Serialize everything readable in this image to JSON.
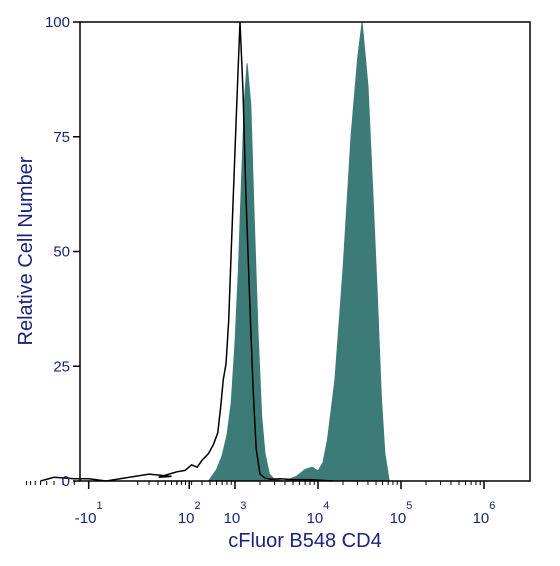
{
  "chart_data": {
    "type": "area",
    "title": "",
    "xlabel": "cFluor B548 CD4",
    "ylabel": "Relative Cell Number",
    "x_scale": "biexponential",
    "ylim": [
      0,
      100
    ],
    "y_ticks": [
      {
        "value": 0,
        "label": "0"
      },
      {
        "value": 25,
        "label": "25"
      },
      {
        "value": 50,
        "label": "50"
      },
      {
        "value": 75,
        "label": "75"
      },
      {
        "value": 100,
        "label": "100"
      }
    ],
    "x_ticks": [
      {
        "value": -10,
        "base": "-10",
        "exp": "1"
      },
      {
        "value": 100,
        "base": "10",
        "exp": "2"
      },
      {
        "value": 1000,
        "base": "10",
        "exp": "3"
      },
      {
        "value": 10000,
        "base": "10",
        "exp": "4"
      },
      {
        "value": 100000,
        "base": "10",
        "exp": "5"
      },
      {
        "value": 1000000,
        "base": "10",
        "exp": "6"
      }
    ],
    "series": [
      {
        "style": "outline",
        "color": "#000000",
        "points": [
          [
            -60,
            0
          ],
          [
            -40,
            0.8
          ],
          [
            -20,
            0.5
          ],
          [
            -10,
            0.5
          ],
          [
            0,
            0
          ],
          [
            10,
            0.6
          ],
          [
            30,
            1.5
          ],
          [
            60,
            1
          ],
          [
            120,
            0.8
          ],
          [
            160,
            1.5
          ],
          [
            200,
            2
          ],
          [
            250,
            2.3
          ],
          [
            300,
            3.5
          ],
          [
            350,
            3
          ],
          [
            400,
            4.5
          ],
          [
            480,
            6
          ],
          [
            550,
            8
          ],
          [
            620,
            10.5
          ],
          [
            680,
            17
          ],
          [
            720,
            22
          ],
          [
            780,
            25.5
          ],
          [
            840,
            35
          ],
          [
            900,
            50
          ],
          [
            1000,
            72
          ],
          [
            1080,
            88
          ],
          [
            1150,
            100
          ],
          [
            1250,
            85
          ],
          [
            1350,
            63
          ],
          [
            1500,
            40
          ],
          [
            1650,
            20
          ],
          [
            1800,
            7
          ],
          [
            2000,
            1.5
          ],
          [
            2300,
            0.6
          ],
          [
            2700,
            0.4
          ],
          [
            3500,
            0.5
          ],
          [
            5000,
            0.3
          ],
          [
            8000,
            0.3
          ],
          [
            15000,
            0
          ]
        ]
      },
      {
        "style": "filled",
        "color": "#3d7b78",
        "points": [
          [
            480,
            0
          ],
          [
            600,
            2.5
          ],
          [
            700,
            5.5
          ],
          [
            800,
            10
          ],
          [
            900,
            17
          ],
          [
            1000,
            30
          ],
          [
            1100,
            46
          ],
          [
            1200,
            66
          ],
          [
            1300,
            83
          ],
          [
            1400,
            91
          ],
          [
            1550,
            82
          ],
          [
            1700,
            58
          ],
          [
            1900,
            32
          ],
          [
            2100,
            14
          ],
          [
            2300,
            6
          ],
          [
            2600,
            1.5
          ],
          [
            3000,
            0.3
          ],
          [
            4000,
            0
          ],
          [
            5500,
            1
          ],
          [
            7000,
            2.5
          ],
          [
            8500,
            3
          ],
          [
            10000,
            2.2
          ],
          [
            11500,
            4
          ],
          [
            13000,
            9
          ],
          [
            16000,
            22
          ],
          [
            20000,
            46
          ],
          [
            25000,
            75
          ],
          [
            30000,
            92
          ],
          [
            34000,
            100
          ],
          [
            40000,
            86
          ],
          [
            46000,
            62
          ],
          [
            52000,
            40
          ],
          [
            58000,
            18
          ],
          [
            64000,
            6
          ],
          [
            72000,
            0
          ]
        ]
      }
    ]
  }
}
